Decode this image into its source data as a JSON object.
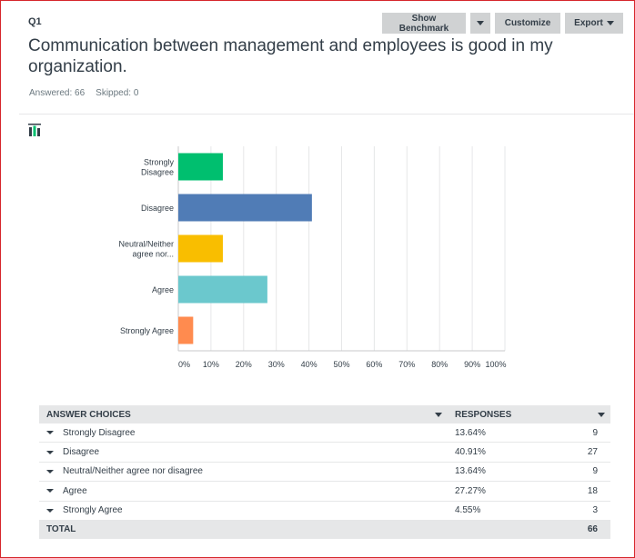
{
  "question": {
    "number": "Q1",
    "title": "Communication between management and employees is good in my organization.",
    "answered": "Answered: 66",
    "skipped": "Skipped: 0"
  },
  "toolbar": {
    "benchmark_label": "Show Benchmark",
    "customize_label": "Customize",
    "export_label": "Export"
  },
  "chart_data": {
    "type": "bar",
    "orientation": "horizontal",
    "categories": [
      "Strongly Disagree",
      "Disagree",
      "Neutral/Neither agree nor...",
      "Agree",
      "Strongly Agree"
    ],
    "category_lines": [
      [
        "Strongly",
        "Disagree"
      ],
      [
        "Disagree"
      ],
      [
        "Neutral/Neither",
        "agree nor..."
      ],
      [
        "Agree"
      ],
      [
        "Strongly Agree"
      ]
    ],
    "values": [
      13.64,
      40.91,
      13.64,
      27.27,
      4.55
    ],
    "colors": [
      "#00bf6f",
      "#507cb6",
      "#f9be00",
      "#6bc8cd",
      "#ff8b4f"
    ],
    "xlim": [
      0,
      100
    ],
    "ticks": [
      "0%",
      "10%",
      "20%",
      "30%",
      "40%",
      "50%",
      "60%",
      "70%",
      "80%",
      "90%",
      "100%"
    ],
    "grid": true
  },
  "table": {
    "header_choices": "ANSWER CHOICES",
    "header_responses": "RESPONSES",
    "rows": [
      {
        "choice": "Strongly Disagree",
        "pct": "13.64%",
        "count": "9"
      },
      {
        "choice": "Disagree",
        "pct": "40.91%",
        "count": "27"
      },
      {
        "choice": "Neutral/Neither agree nor disagree",
        "pct": "13.64%",
        "count": "9"
      },
      {
        "choice": "Agree",
        "pct": "27.27%",
        "count": "18"
      },
      {
        "choice": "Strongly Agree",
        "pct": "4.55%",
        "count": "3"
      }
    ],
    "total_label": "TOTAL",
    "total_count": "66"
  }
}
